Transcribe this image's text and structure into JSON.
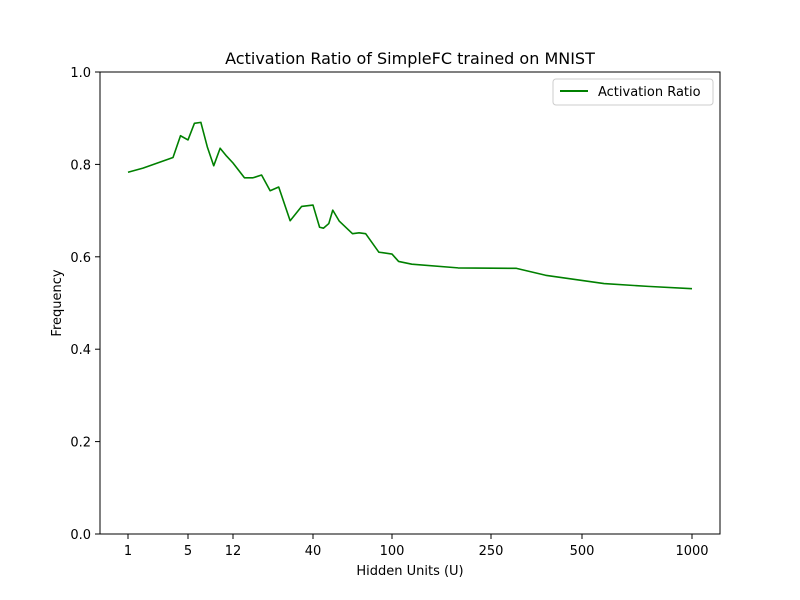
{
  "chart_data": {
    "type": "line",
    "title": "Activation Ratio of SimpleFC trained on MNIST",
    "xlabel": "Hidden Units (U)",
    "ylabel": "Frequency",
    "xscale": "nonlinear (piecewise, tick labels 1, 5, 12, 40, 100, 250, 500, 1000)",
    "xticks": [
      1,
      5,
      12,
      40,
      100,
      250,
      500,
      1000
    ],
    "xtick_labels": [
      "1",
      "5",
      "12",
      "40",
      "100",
      "250",
      "500",
      "1000"
    ],
    "yticks": [
      0.0,
      0.2,
      0.4,
      0.6,
      0.8,
      1.0
    ],
    "ytick_labels": [
      "0.0",
      "0.2",
      "0.4",
      "0.6",
      "0.8",
      "1.0"
    ],
    "ylim": [
      0.0,
      1.0
    ],
    "grid": false,
    "legend": {
      "placement": "top-right",
      "entries": [
        "Activation Ratio"
      ]
    },
    "series": [
      {
        "name": "Activation Ratio",
        "color": "#008000",
        "x": [
          1,
          2,
          4,
          4.5,
          5,
          6,
          7,
          8,
          9,
          10,
          11,
          12,
          16,
          19,
          22,
          25,
          28,
          32,
          36,
          40,
          45,
          48,
          52,
          55,
          60,
          70,
          75,
          80,
          90,
          100,
          110,
          130,
          200,
          320,
          400,
          600,
          800,
          1000
        ],
        "y": [
          0.783,
          0.792,
          0.815,
          0.862,
          0.853,
          0.889,
          0.891,
          0.838,
          0.797,
          0.835,
          0.818,
          0.803,
          0.771,
          0.771,
          0.777,
          0.743,
          0.751,
          0.678,
          0.709,
          0.712,
          0.664,
          0.662,
          0.672,
          0.701,
          0.677,
          0.65,
          0.652,
          0.65,
          0.61,
          0.606,
          0.59,
          0.584,
          0.576,
          0.575,
          0.56,
          0.542,
          0.536,
          0.531
        ]
      }
    ]
  }
}
